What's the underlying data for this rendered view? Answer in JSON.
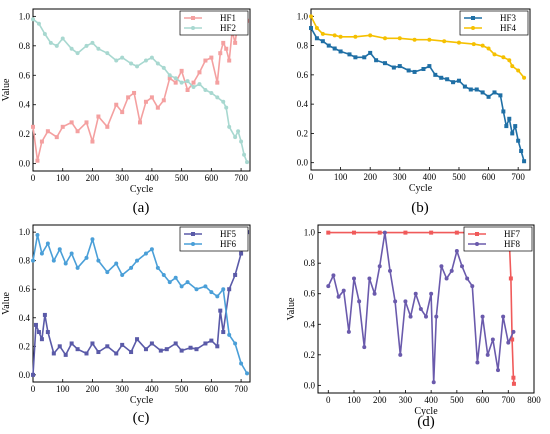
{
  "chart_data": [
    {
      "type": "line",
      "caption": "(a)",
      "xlabel": "Cycle",
      "ylabel": "Value",
      "xlim": [
        0,
        730
      ],
      "ylim": [
        -0.05,
        1.05
      ],
      "xticks": [
        0,
        100,
        200,
        300,
        400,
        500,
        600,
        700
      ],
      "yticks": [
        0.0,
        0.2,
        0.4,
        0.6,
        0.8,
        1.0
      ],
      "grid": false,
      "legend_position": "top-right",
      "series": [
        {
          "name": "HF1",
          "color": "#f4a0a0",
          "marker": "square",
          "x": [
            0,
            15,
            30,
            50,
            80,
            100,
            130,
            150,
            180,
            200,
            220,
            250,
            280,
            300,
            320,
            340,
            360,
            380,
            400,
            420,
            440,
            460,
            480,
            500,
            520,
            540,
            560,
            580,
            600,
            620,
            630,
            640,
            650,
            660,
            670,
            680,
            690,
            700,
            710,
            720
          ],
          "y": [
            0.25,
            0.02,
            0.15,
            0.22,
            0.18,
            0.25,
            0.28,
            0.22,
            0.28,
            0.15,
            0.32,
            0.25,
            0.4,
            0.35,
            0.45,
            0.48,
            0.28,
            0.42,
            0.45,
            0.38,
            0.43,
            0.58,
            0.55,
            0.63,
            0.5,
            0.55,
            0.62,
            0.7,
            0.72,
            0.55,
            0.75,
            0.82,
            0.78,
            0.7,
            0.9,
            0.82,
            0.97,
            0.95,
            0.97,
            0.97
          ]
        },
        {
          "name": "HF2",
          "color": "#a8d8d0",
          "marker": "circle",
          "x": [
            0,
            20,
            40,
            60,
            80,
            100,
            130,
            150,
            180,
            200,
            220,
            250,
            280,
            300,
            330,
            350,
            380,
            400,
            420,
            440,
            460,
            480,
            500,
            520,
            540,
            560,
            580,
            600,
            620,
            640,
            650,
            660,
            680,
            690,
            700,
            710,
            720
          ],
          "y": [
            0.98,
            0.95,
            0.88,
            0.82,
            0.8,
            0.85,
            0.78,
            0.75,
            0.8,
            0.82,
            0.78,
            0.75,
            0.7,
            0.72,
            0.68,
            0.66,
            0.7,
            0.72,
            0.68,
            0.65,
            0.6,
            0.58,
            0.55,
            0.56,
            0.52,
            0.54,
            0.5,
            0.48,
            0.45,
            0.42,
            0.38,
            0.25,
            0.18,
            0.22,
            0.15,
            0.06,
            0.01
          ]
        }
      ]
    },
    {
      "type": "line",
      "caption": "(b)",
      "xlabel": "Cycle",
      "ylabel": "",
      "xlim": [
        0,
        740
      ],
      "ylim": [
        -0.05,
        1.05
      ],
      "xticks": [
        0,
        100,
        200,
        300,
        400,
        500,
        600,
        700
      ],
      "yticks": [
        0.0,
        0.2,
        0.4,
        0.6,
        0.8,
        1.0
      ],
      "grid": false,
      "legend_position": "top-right",
      "series": [
        {
          "name": "HF3",
          "color": "#1f6fa5",
          "marker": "square",
          "x": [
            0,
            20,
            40,
            60,
            80,
            100,
            130,
            150,
            180,
            200,
            220,
            250,
            280,
            300,
            330,
            350,
            380,
            400,
            420,
            440,
            460,
            480,
            500,
            520,
            540,
            560,
            580,
            600,
            620,
            640,
            650,
            660,
            670,
            680,
            690,
            700,
            710,
            720
          ],
          "y": [
            0.92,
            0.85,
            0.83,
            0.8,
            0.78,
            0.76,
            0.74,
            0.72,
            0.72,
            0.75,
            0.7,
            0.68,
            0.65,
            0.66,
            0.63,
            0.62,
            0.64,
            0.66,
            0.6,
            0.58,
            0.57,
            0.55,
            0.56,
            0.52,
            0.5,
            0.5,
            0.48,
            0.45,
            0.48,
            0.46,
            0.35,
            0.25,
            0.3,
            0.2,
            0.25,
            0.15,
            0.08,
            0.01
          ]
        },
        {
          "name": "HF4",
          "color": "#f5c000",
          "marker": "circle",
          "x": [
            0,
            20,
            40,
            80,
            100,
            150,
            200,
            250,
            300,
            350,
            400,
            450,
            500,
            550,
            580,
            600,
            620,
            650,
            670,
            680,
            700,
            720
          ],
          "y": [
            1.0,
            0.92,
            0.88,
            0.87,
            0.86,
            0.86,
            0.87,
            0.85,
            0.85,
            0.84,
            0.84,
            0.83,
            0.82,
            0.81,
            0.8,
            0.78,
            0.74,
            0.72,
            0.7,
            0.66,
            0.63,
            0.58
          ]
        }
      ]
    },
    {
      "type": "line",
      "caption": "(c)",
      "xlabel": "Cycle",
      "ylabel": "Value",
      "xlim": [
        0,
        730
      ],
      "ylim": [
        -0.05,
        1.05
      ],
      "xticks": [
        0,
        100,
        200,
        300,
        400,
        500,
        600,
        700
      ],
      "yticks": [
        0.0,
        0.2,
        0.4,
        0.6,
        0.8,
        1.0
      ],
      "grid": false,
      "legend_position": "top-right",
      "series": [
        {
          "name": "HF5",
          "color": "#5a5aa8",
          "marker": "square",
          "x": [
            0,
            10,
            20,
            30,
            40,
            50,
            70,
            90,
            110,
            130,
            150,
            180,
            200,
            220,
            250,
            280,
            300,
            330,
            350,
            380,
            400,
            430,
            450,
            480,
            500,
            530,
            550,
            580,
            600,
            620,
            630,
            640,
            660,
            680,
            700,
            710,
            720
          ],
          "y": [
            0.0,
            0.35,
            0.3,
            0.25,
            0.42,
            0.3,
            0.15,
            0.2,
            0.14,
            0.22,
            0.18,
            0.15,
            0.22,
            0.16,
            0.2,
            0.15,
            0.21,
            0.16,
            0.25,
            0.18,
            0.22,
            0.17,
            0.18,
            0.22,
            0.17,
            0.19,
            0.18,
            0.22,
            0.24,
            0.2,
            0.45,
            0.3,
            0.6,
            0.7,
            0.85,
            0.95,
            1.0
          ]
        },
        {
          "name": "HF6",
          "color": "#4a9fd8",
          "marker": "circle",
          "x": [
            0,
            15,
            30,
            50,
            70,
            90,
            110,
            130,
            150,
            180,
            200,
            220,
            250,
            280,
            300,
            330,
            350,
            380,
            400,
            420,
            440,
            460,
            480,
            500,
            520,
            550,
            580,
            600,
            620,
            640,
            660,
            680,
            700,
            720
          ],
          "y": [
            0.8,
            0.98,
            0.85,
            0.92,
            0.8,
            0.88,
            0.78,
            0.85,
            0.75,
            0.82,
            0.95,
            0.8,
            0.72,
            0.78,
            0.7,
            0.75,
            0.8,
            0.85,
            0.88,
            0.75,
            0.7,
            0.65,
            0.68,
            0.62,
            0.65,
            0.6,
            0.62,
            0.58,
            0.55,
            0.6,
            0.28,
            0.22,
            0.08,
            0.01
          ]
        }
      ]
    },
    {
      "type": "line",
      "caption": "(d)",
      "xlabel": "Cycle",
      "ylabel": "Value",
      "xlim": [
        -40,
        800
      ],
      "ylim": [
        -0.05,
        1.05
      ],
      "xticks": [
        0,
        100,
        200,
        300,
        400,
        500,
        600,
        700,
        800
      ],
      "yticks": [
        0.0,
        0.2,
        0.4,
        0.6,
        0.8,
        1.0
      ],
      "grid": false,
      "legend_position": "top-right",
      "series": [
        {
          "name": "HF7",
          "color": "#f05a5a",
          "marker": "square",
          "x": [
            0,
            100,
            200,
            300,
            400,
            500,
            600,
            690,
            700,
            705,
            710,
            715,
            720,
            722
          ],
          "y": [
            1.0,
            1.0,
            1.0,
            1.0,
            1.0,
            1.0,
            1.0,
            1.0,
            0.98,
            0.9,
            0.7,
            0.3,
            0.05,
            0.01
          ]
        },
        {
          "name": "HF8",
          "color": "#6a5aac",
          "marker": "circle",
          "x": [
            0,
            20,
            40,
            60,
            80,
            100,
            120,
            140,
            160,
            180,
            200,
            220,
            240,
            260,
            280,
            300,
            320,
            340,
            360,
            380,
            400,
            410,
            420,
            440,
            460,
            480,
            500,
            520,
            540,
            560,
            580,
            600,
            620,
            640,
            660,
            680,
            700,
            720
          ],
          "y": [
            0.65,
            0.72,
            0.58,
            0.62,
            0.35,
            0.7,
            0.55,
            0.25,
            0.7,
            0.6,
            0.78,
            1.0,
            0.75,
            0.55,
            0.2,
            0.55,
            0.45,
            0.6,
            0.5,
            0.45,
            0.6,
            0.02,
            0.45,
            0.78,
            0.7,
            0.75,
            0.88,
            0.78,
            0.7,
            0.65,
            0.15,
            0.45,
            0.2,
            0.3,
            0.1,
            0.45,
            0.28,
            0.35
          ]
        }
      ]
    }
  ]
}
